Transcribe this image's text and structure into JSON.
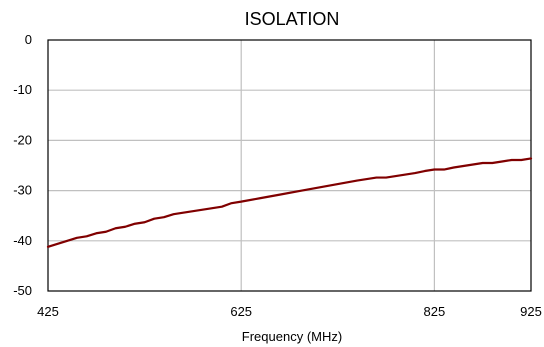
{
  "chart_data": {
    "type": "line",
    "title": "ISOLATION",
    "xlabel": "Frequency  (MHz)",
    "ylabel": "",
    "xlim": [
      425,
      925
    ],
    "ylim": [
      -50,
      0
    ],
    "x_ticks": [
      425,
      625,
      825,
      925
    ],
    "y_ticks": [
      0,
      -10,
      -20,
      -30,
      -40,
      -50
    ],
    "x_tick_labels": [
      "425",
      "625",
      "825",
      "925"
    ],
    "y_tick_labels": [
      "0",
      "-10",
      "-20",
      "-30",
      "-40",
      "-50"
    ],
    "grid": true,
    "legend": "none",
    "series": [
      {
        "color": "#800000",
        "x": [
          425,
          445,
          455,
          465,
          475,
          485,
          495,
          505,
          515,
          525,
          535,
          545,
          555,
          565,
          575,
          585,
          595,
          605,
          615,
          625,
          645,
          665,
          685,
          705,
          725,
          745,
          765,
          775,
          785,
          795,
          805,
          815,
          825,
          835,
          845,
          855,
          865,
          875,
          885,
          895,
          905,
          915,
          925
        ],
        "y": [
          -41.2,
          -40.0,
          -39.4,
          -39.1,
          -38.5,
          -38.2,
          -37.5,
          -37.2,
          -36.6,
          -36.3,
          -35.6,
          -35.3,
          -34.7,
          -34.4,
          -34.1,
          -33.8,
          -33.5,
          -33.2,
          -32.5,
          -32.2,
          -31.5,
          -30.8,
          -30.1,
          -29.4,
          -28.7,
          -28.0,
          -27.4,
          -27.4,
          -27.1,
          -26.8,
          -26.5,
          -26.1,
          -25.8,
          -25.8,
          -25.4,
          -25.1,
          -24.8,
          -24.5,
          -24.5,
          -24.2,
          -23.9,
          -23.9,
          -23.6
        ]
      }
    ]
  }
}
